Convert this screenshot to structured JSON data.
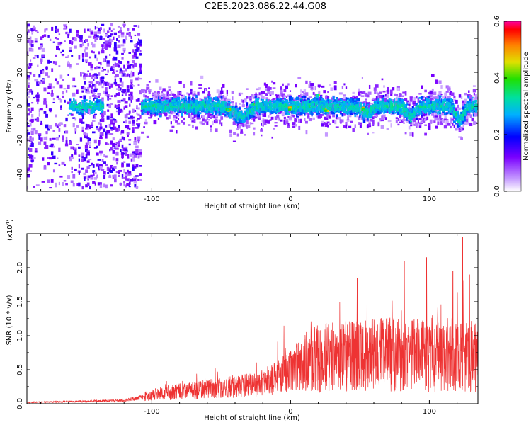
{
  "title": "C2E5.2023.086.22.44.G08",
  "chart_data": [
    {
      "type": "heatmap",
      "xlabel": "Height of straight line (km)",
      "ylabel": "Frequency (Hz)",
      "xlim": [
        -190,
        135
      ],
      "ylim": [
        -50,
        50
      ],
      "xticks": [
        -100,
        0,
        100
      ],
      "yticks": [
        -40,
        -20,
        0,
        20,
        40
      ],
      "colorbar": {
        "label": "Normalized spectral amplitude",
        "range": [
          0,
          0.6
        ],
        "ticks": [
          0.0,
          0.2,
          0.4,
          0.6
        ],
        "tick_labels": [
          "0.0",
          "0.2",
          "0.4",
          "0.6"
        ]
      },
      "grid": false,
      "description_features": {
        "dense_low_height_band_km": [
          -190,
          -108
        ],
        "signal_center_hz": 0,
        "signal_halfwidth_hz": 12,
        "hot_spots": [
          {
            "x": -45,
            "y": -2,
            "value": 0.5
          },
          {
            "x": -28,
            "y": 1,
            "value": 0.45
          },
          {
            "x": 0,
            "y": -1,
            "value": 0.55
          },
          {
            "x": 20,
            "y": 6,
            "value": 0.45
          },
          {
            "x": 25,
            "y": -2,
            "value": 0.5
          },
          {
            "x": 52,
            "y": -2,
            "value": 0.5
          }
        ]
      }
    },
    {
      "type": "line",
      "xlabel": "Height of straight line (km)",
      "ylabel": "SNR (10 * v/v)",
      "y_multiplier": "(x10",
      "y_multiplier_exp": "4",
      "y_multiplier_close": ")",
      "xlim": [
        -190,
        135
      ],
      "ylim": [
        0,
        2.5
      ],
      "xticks": [
        -100,
        0,
        100
      ],
      "yticks": [
        0.0,
        0.5,
        1.0,
        1.5,
        2.0
      ],
      "ytick_labels": [
        "0.0",
        "0.5",
        "1.0",
        "1.5",
        "2.0"
      ],
      "color": "#ee3333",
      "series": [
        {
          "x": [
            -190,
            -160,
            -140,
            -120,
            -105,
            -90,
            -70,
            -50,
            -30,
            -20,
            -10,
            0,
            10,
            20,
            40,
            60,
            80,
            100,
            120,
            135
          ],
          "y": [
            0.02,
            0.03,
            0.04,
            0.05,
            0.1,
            0.15,
            0.18,
            0.22,
            0.25,
            0.28,
            0.35,
            0.45,
            0.55,
            0.6,
            0.65,
            0.65,
            0.65,
            0.65,
            0.65,
            0.65
          ],
          "peaks": [
            {
              "x": 48,
              "y": 1.85
            },
            {
              "x": 82,
              "y": 2.1
            },
            {
              "x": 98,
              "y": 2.15
            },
            {
              "x": 117,
              "y": 1.95
            },
            {
              "x": 124,
              "y": 2.45
            },
            {
              "x": 129,
              "y": 1.9
            }
          ]
        }
      ]
    }
  ]
}
